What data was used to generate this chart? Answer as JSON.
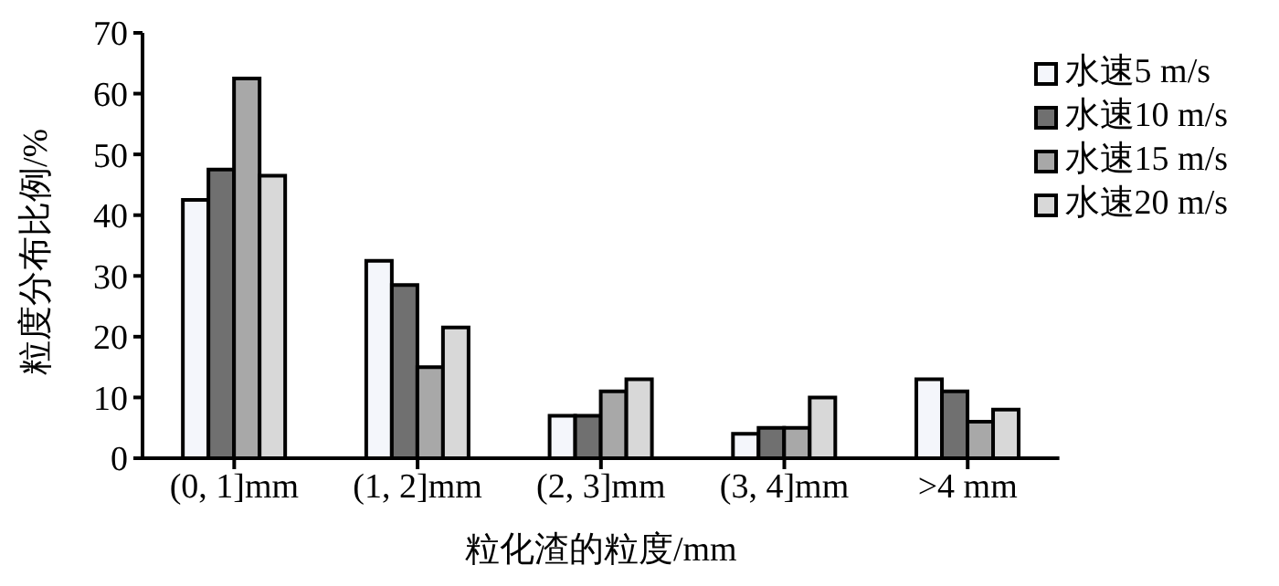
{
  "chart_data": {
    "type": "bar",
    "xlabel": "粒化渣的粒度/mm",
    "ylabel": "粒度分布比例/%",
    "categories": [
      "(0, 1]mm",
      "(1, 2]mm",
      "(2, 3]mm",
      "(3, 4]mm",
      ">4 mm"
    ],
    "series": [
      {
        "name": "水速5 m/s",
        "color": "#f4f6fb",
        "values": [
          42.5,
          32.5,
          7,
          4,
          13
        ]
      },
      {
        "name": "水速10 m/s",
        "color": "#707070",
        "values": [
          47.5,
          28.5,
          7,
          5,
          11
        ]
      },
      {
        "name": "水速15 m/s",
        "color": "#a8a8a8",
        "values": [
          62.5,
          15,
          11,
          5,
          6
        ]
      },
      {
        "name": "水速20 m/s",
        "color": "#d8d8d8",
        "values": [
          46.5,
          21.5,
          13,
          10,
          8
        ]
      }
    ],
    "ylim": [
      0,
      70
    ],
    "yticks": [
      0,
      10,
      20,
      30,
      40,
      50,
      60,
      70
    ],
    "grid": false,
    "legend": "top right"
  }
}
